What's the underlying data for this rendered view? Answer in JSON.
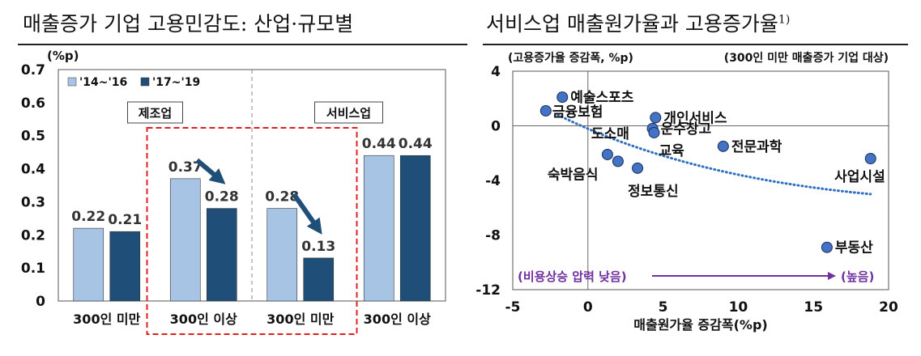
{
  "charts": [
    {
      "title": "매출증가 기업 고용민감도: 산업·규모별",
      "chart_data": {
        "type": "bar",
        "title": "매출증가 기업 고용민감도: 산업·규모별",
        "unit": "(%p)",
        "ylim": [
          0,
          0.7
        ],
        "yticks": [
          "0",
          "0.1",
          "0.2",
          "0.3",
          "0.4",
          "0.5",
          "0.6",
          "0.7"
        ],
        "categories": [
          "300인 미만",
          "300인 이상",
          "300인 미만",
          "300인 이상"
        ],
        "groups": [
          "제조업",
          "서비스업"
        ],
        "series": [
          {
            "name": "'14~'16",
            "values": [
              0.22,
              0.37,
              0.28,
              0.44
            ],
            "labels": [
              "0.22",
              "0.37",
              "0.28",
              "0.44"
            ],
            "color": "#a7c4e5"
          },
          {
            "name": "'17~'19",
            "values": [
              0.21,
              0.28,
              0.13,
              0.44
            ],
            "labels": [
              "0.21",
              "0.28",
              "0.13",
              "0.44"
            ],
            "color": "#1f4e79"
          }
        ],
        "legend": "top-left",
        "grid": false
      }
    },
    {
      "title": "서비스업 매출원가율과 고용증가율",
      "title_note": "1)",
      "chart_data": {
        "type": "scatter",
        "title": "서비스업 매출원가율과 고용증가율",
        "ylabel": "(고용증가율 증감폭, %p)",
        "xlabel": "매출원가율 증감폭(%p)",
        "note": "(300인 미만 매출증가 기업 대상)",
        "xlim": [
          -5,
          20
        ],
        "ylim": [
          -12,
          4
        ],
        "xticks": [
          "-5",
          "0",
          "5",
          "10",
          "15",
          "20"
        ],
        "yticks": [
          "4",
          "0",
          "-4",
          "-8",
          "-12"
        ],
        "points": [
          {
            "label": "예술스포츠",
            "x": -1.7,
            "y": 2.1
          },
          {
            "label": "금융보험",
            "x": -2.8,
            "y": 1.1
          },
          {
            "label": "개인서비스",
            "x": 4.5,
            "y": 0.6
          },
          {
            "label": "운수창고",
            "x": 4.3,
            "y": -0.2
          },
          {
            "label": "교육",
            "x": 4.4,
            "y": -0.5
          },
          {
            "label": "전문과학",
            "x": 9.0,
            "y": -1.5
          },
          {
            "label": "도소매",
            "x": 1.3,
            "y": -2.1
          },
          {
            "label": "숙박음식",
            "x": 2.0,
            "y": -2.6
          },
          {
            "label": "정보통신",
            "x": 3.3,
            "y": -3.1
          },
          {
            "label": "사업시설",
            "x": 18.8,
            "y": -2.4
          },
          {
            "label": "부동산",
            "x": 15.9,
            "y": -8.9
          }
        ],
        "trendline": {
          "x": [
            -2,
            18.8
          ],
          "y": [
            0.8,
            -5
          ]
        },
        "annotation_left": "(비용상승 압력 낮음)",
        "annotation_right": "(높음)",
        "point_color": "#4472c4",
        "annotation_color": "#7030a0",
        "legend": "none",
        "grid": false
      }
    }
  ]
}
